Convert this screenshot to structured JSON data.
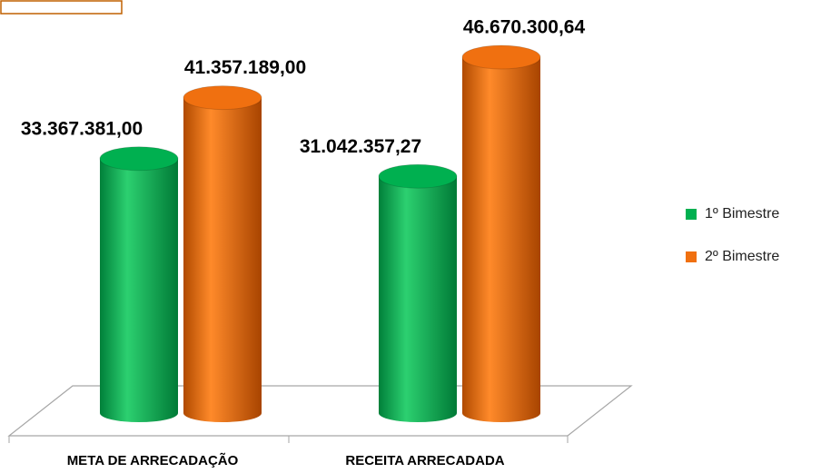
{
  "chart_data": {
    "type": "bar",
    "categories": [
      "META DE ARRECADAÇÃO",
      "RECEITA ARRECADADA"
    ],
    "series": [
      {
        "name": "1º Bimestre",
        "color": "#00b050",
        "values": [
          33367381.0,
          31042357.27
        ],
        "value_labels": [
          "33.367.381,00",
          "31.042.357,27"
        ]
      },
      {
        "name": "2º Bimestre",
        "color": "#f07010",
        "values": [
          41357189.0,
          46670300.64
        ],
        "value_labels": [
          "41.357.189,00",
          "46.670.300,64"
        ]
      }
    ],
    "legend": "right"
  }
}
